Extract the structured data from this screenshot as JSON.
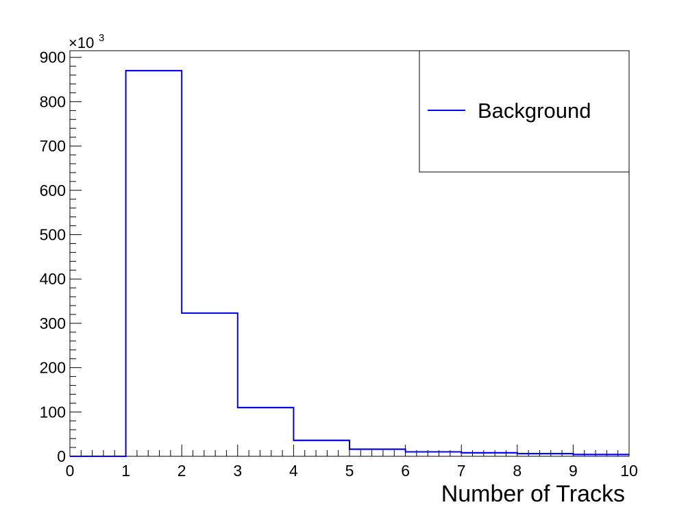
{
  "chart_data": {
    "type": "bar",
    "style": "step-histogram",
    "xlabel": "Number of Tracks",
    "ylabel": "",
    "y_multiplier": "×10",
    "y_multiplier_exp": "3",
    "xlim": [
      0,
      10
    ],
    "ylim": [
      0,
      915
    ],
    "x_ticks": [
      "0",
      "1",
      "2",
      "3",
      "4",
      "5",
      "6",
      "7",
      "8",
      "9",
      "10"
    ],
    "y_ticks": [
      "0",
      "100",
      "200",
      "300",
      "400",
      "500",
      "600",
      "700",
      "800",
      "900"
    ],
    "bin_edges": [
      0,
      1,
      2,
      3,
      4,
      5,
      6,
      7,
      8,
      9,
      10
    ],
    "series": [
      {
        "name": "Background",
        "color": "#0000ee",
        "values": [
          0,
          870,
          323,
          110,
          36,
          16,
          10,
          8,
          6,
          4
        ]
      }
    ],
    "legend_position": "top-right",
    "grid": false
  }
}
